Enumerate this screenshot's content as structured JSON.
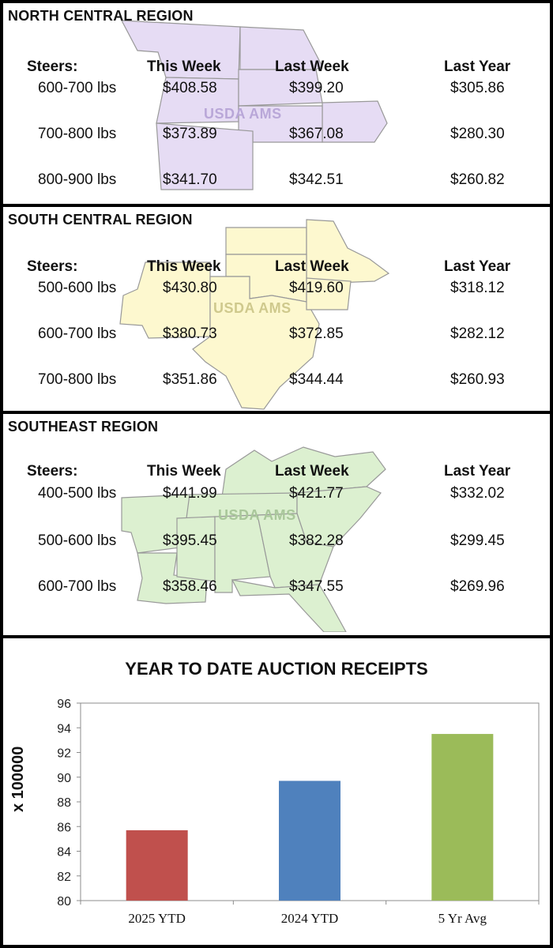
{
  "regions": [
    {
      "title": "NORTH CENTRAL REGION",
      "watermark": "USDA AMS",
      "headers": [
        "Steers:",
        "This Week",
        "Last Week",
        "Last Year"
      ],
      "rows": [
        {
          "weight": "600-700 lbs",
          "this_week": "$408.58",
          "last_week": "$399.20",
          "last_year": "$305.86"
        },
        {
          "weight": "700-800 lbs",
          "this_week": "$373.89",
          "last_week": "$367.08",
          "last_year": "$280.30"
        },
        {
          "weight": "800-900 lbs",
          "this_week": "$341.70",
          "last_week": "$342.51",
          "last_year": "$260.82"
        }
      ],
      "map_color": "#e6dcf4"
    },
    {
      "title": "SOUTH CENTRAL REGION",
      "watermark": "USDA AMS",
      "headers": [
        "Steers:",
        "This Week",
        "Last Week",
        "Last Year"
      ],
      "rows": [
        {
          "weight": "500-600 lbs",
          "this_week": "$430.80",
          "last_week": "$419.60",
          "last_year": "$318.12"
        },
        {
          "weight": "600-700 lbs",
          "this_week": "$380.73",
          "last_week": "$372.85",
          "last_year": "$282.12"
        },
        {
          "weight": "700-800 lbs",
          "this_week": "$351.86",
          "last_week": "$344.44",
          "last_year": "$260.93"
        }
      ],
      "map_color": "#fdf8cf"
    },
    {
      "title": "SOUTHEAST REGION",
      "watermark": "USDA AMS",
      "headers": [
        "Steers:",
        "This Week",
        "Last Week",
        "Last Year"
      ],
      "rows": [
        {
          "weight": "400-500 lbs",
          "this_week": "$441.99",
          "last_week": "$421.77",
          "last_year": "$332.02"
        },
        {
          "weight": "500-600 lbs",
          "this_week": "$395.45",
          "last_week": "$382.28",
          "last_year": "$299.45"
        },
        {
          "weight": "600-700 lbs",
          "this_week": "$358.46",
          "last_week": "$347.55",
          "last_year": "$269.96"
        }
      ],
      "map_color": "#dcf0d0"
    }
  ],
  "chart_data": {
    "type": "bar",
    "title": "YEAR TO DATE AUCTION RECEIPTS",
    "ylabel": "x 100000",
    "xlabel": "",
    "categories": [
      "2025 YTD",
      "2024 YTD",
      "5 Yr Avg"
    ],
    "values": [
      85.7,
      89.7,
      93.5
    ],
    "colors": [
      "#c0504d",
      "#4f81bd",
      "#9bbb59"
    ],
    "ylim": [
      80,
      96
    ],
    "yticks": [
      80,
      82,
      84,
      86,
      88,
      90,
      92,
      94,
      96
    ],
    "grid": false
  }
}
